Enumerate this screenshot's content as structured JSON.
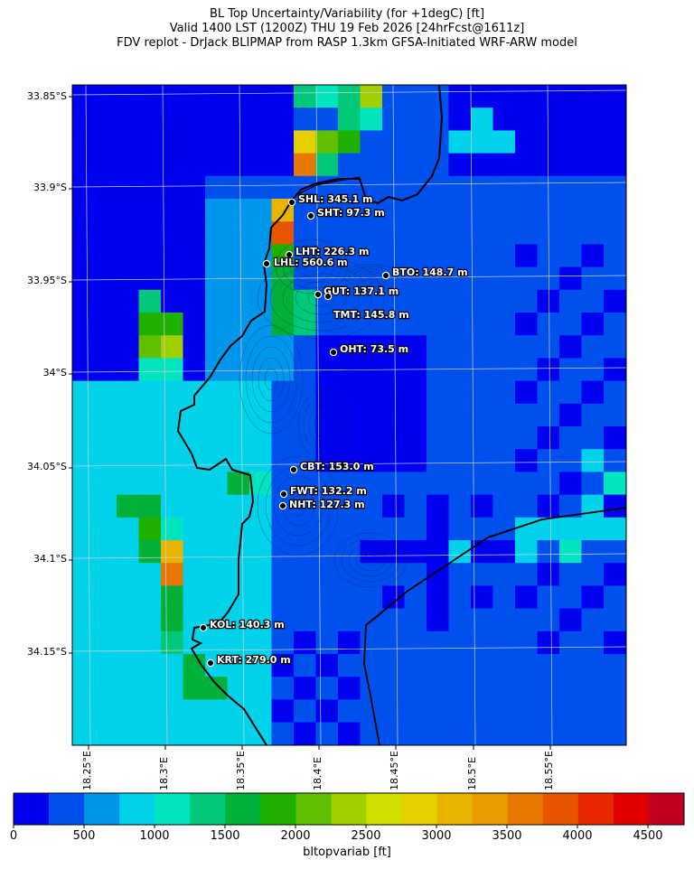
{
  "title": {
    "line1": "BL Top Uncertainty/Variability (for +1degC) [ft]",
    "line2": "Valid 1400 LST (1200Z) THU 19 Feb 2026 [24hrFcst@1611z]",
    "line3": "FDV replot - DrJack BLIPMAP from RASP 1.3km GFSA-Initiated WRF-ARW model"
  },
  "lat_labels": [
    "33.85°S",
    "33.9°S",
    "33.95°S",
    "34°S",
    "34.05°S",
    "34.1°S",
    "34.15°S"
  ],
  "lon_labels": [
    "18.25°E",
    "18.3°E",
    "18.35°E",
    "18.4°E",
    "18.45°E",
    "18.5°E",
    "18.55°E"
  ],
  "colorbar": {
    "label": "bltopvariab [ft]",
    "ticks": [
      "0",
      "500",
      "1000",
      "1500",
      "2000",
      "2500",
      "3000",
      "3500",
      "4000",
      "4500"
    ],
    "colors": [
      "#0000f0",
      "#0050ee",
      "#0096ec",
      "#00d2ea",
      "#00e4c0",
      "#00c878",
      "#00b038",
      "#20b000",
      "#60c000",
      "#a0d000",
      "#d2e000",
      "#e6d000",
      "#e8b400",
      "#e89c00",
      "#e87800",
      "#e85400",
      "#e82800",
      "#e00000",
      "#c00020"
    ]
  },
  "stations": [
    {
      "name": "SHL: 345.1 m"
    },
    {
      "name": "SHT: 97.3 m"
    },
    {
      "name": "LHT: 226.3 m"
    },
    {
      "name": "LHL: 560.6 m"
    },
    {
      "name": "BTO: 148.7 m"
    },
    {
      "name": "GUT: 137.1 m"
    },
    {
      "name": "TMT: 145.8 m"
    },
    {
      "name": "OHT: 73.5 m"
    },
    {
      "name": "CBT: 153.0 m"
    },
    {
      "name": "FWT: 132.2 m"
    },
    {
      "name": "NHT: 127.3 m"
    },
    {
      "name": "KOL: 140.3 m"
    },
    {
      "name": "KRT: 279.0 m"
    }
  ]
}
